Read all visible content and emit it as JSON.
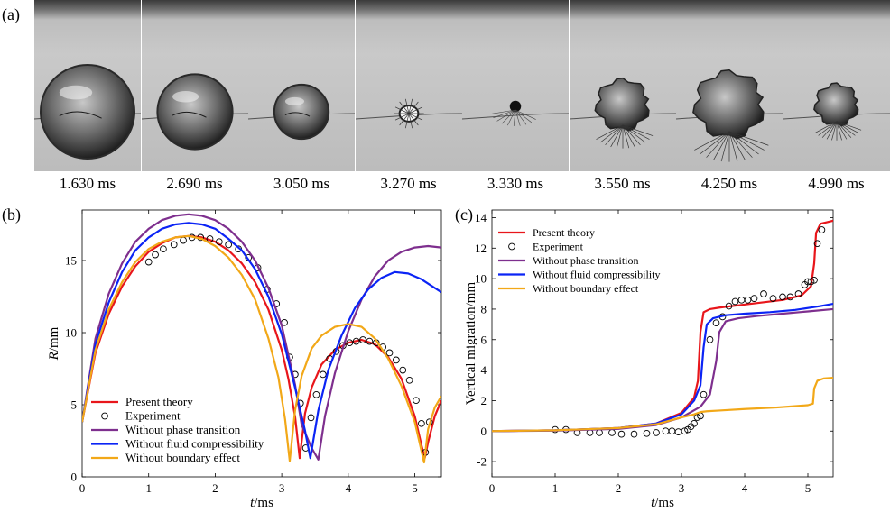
{
  "panel_labels": {
    "a": "(a)",
    "b": "(b)",
    "c": "(c)"
  },
  "frames": [
    {
      "time": "1.630 ms",
      "bubble": 1.0,
      "shape": "sphere"
    },
    {
      "time": "2.690 ms",
      "bubble": 0.8,
      "shape": "sphere"
    },
    {
      "time": "3.050 ms",
      "bubble": 0.58,
      "shape": "sphere"
    },
    {
      "time": "3.270 ms",
      "bubble": 0.2,
      "shape": "bright-core"
    },
    {
      "time": "3.330 ms",
      "bubble": 0.12,
      "shape": "dark-core"
    },
    {
      "time": "3.550 ms",
      "bubble": 0.55,
      "shape": "rough"
    },
    {
      "time": "4.250 ms",
      "bubble": 0.72,
      "shape": "rough"
    },
    {
      "time": "4.990 ms",
      "bubble": 0.45,
      "shape": "rough"
    }
  ],
  "colors": {
    "present": "#e8161b",
    "phase": "#7e2f8e",
    "compress": "#0b24f5",
    "boundary": "#f2a818",
    "experiment": "#000000"
  },
  "chart_data": [
    {
      "type": "line",
      "xlabel_var": "t",
      "xlabel_unit": "/ms",
      "ylabel_var": "R",
      "ylabel_unit": "/mm",
      "xlim": [
        0,
        5.4
      ],
      "ylim": [
        0,
        18.5
      ],
      "xticks": [
        0,
        1,
        2,
        3,
        4,
        5
      ],
      "yticks": [
        0,
        5,
        10,
        15
      ],
      "legend_position": "bottom-left",
      "legend": [
        "Present theory",
        "Experiment",
        "Without phase transition",
        "Without fluid compressibility",
        "Without boundary effect"
      ],
      "series": [
        {
          "name": "Present theory",
          "style": "line",
          "color_key": "present",
          "x": [
            0,
            0.2,
            0.4,
            0.6,
            0.8,
            1.0,
            1.2,
            1.4,
            1.6,
            1.8,
            2.0,
            2.2,
            2.4,
            2.6,
            2.8,
            3.0,
            3.1,
            3.2,
            3.27,
            3.35,
            3.45,
            3.6,
            3.8,
            4.0,
            4.2,
            4.4,
            4.6,
            4.8,
            5.0,
            5.1,
            5.15,
            5.2,
            5.3,
            5.4
          ],
          "y": [
            3.8,
            8.6,
            11.3,
            13.2,
            14.6,
            15.6,
            16.2,
            16.6,
            16.7,
            16.6,
            16.3,
            15.7,
            14.8,
            13.5,
            11.6,
            8.8,
            6.8,
            4.2,
            1.3,
            4.4,
            6.2,
            7.8,
            8.8,
            9.3,
            9.5,
            9.2,
            8.3,
            6.8,
            4.2,
            2.2,
            1.3,
            2.4,
            4.2,
            5.3
          ]
        },
        {
          "name": "Experiment",
          "style": "marker",
          "color_key": "experiment",
          "x": [
            1.0,
            1.1,
            1.22,
            1.38,
            1.52,
            1.65,
            1.78,
            1.92,
            2.06,
            2.2,
            2.35,
            2.5,
            2.64,
            2.78,
            2.92,
            3.04,
            3.12,
            3.2,
            3.28,
            3.36,
            3.44,
            3.52,
            3.62,
            3.72,
            3.82,
            3.92,
            4.02,
            4.12,
            4.22,
            4.32,
            4.42,
            4.52,
            4.62,
            4.72,
            4.82,
            4.92,
            5.02,
            5.1,
            5.16,
            5.22
          ],
          "y": [
            14.9,
            15.4,
            15.8,
            16.1,
            16.4,
            16.6,
            16.6,
            16.5,
            16.3,
            16.1,
            15.8,
            15.2,
            14.5,
            13.0,
            12.0,
            10.7,
            8.3,
            7.1,
            5.1,
            2.0,
            4.1,
            5.7,
            7.1,
            8.2,
            8.7,
            9.1,
            9.3,
            9.4,
            9.5,
            9.4,
            9.3,
            9.0,
            8.6,
            8.1,
            7.4,
            6.7,
            5.3,
            3.7,
            1.7,
            3.8
          ]
        },
        {
          "name": "Without phase transition",
          "style": "line",
          "color_key": "phase",
          "x": [
            0,
            0.2,
            0.4,
            0.6,
            0.8,
            1.0,
            1.2,
            1.4,
            1.6,
            1.8,
            2.0,
            2.2,
            2.4,
            2.6,
            2.8,
            3.0,
            3.2,
            3.3,
            3.45,
            3.55,
            3.65,
            3.8,
            4.0,
            4.2,
            4.4,
            4.6,
            4.8,
            5.0,
            5.2,
            5.4
          ],
          "y": [
            3.8,
            9.6,
            12.7,
            14.8,
            16.3,
            17.2,
            17.8,
            18.1,
            18.2,
            18.1,
            17.8,
            17.2,
            16.3,
            15.0,
            13.1,
            10.5,
            6.4,
            3.6,
            2.0,
            1.2,
            4.2,
            7.2,
            10.1,
            12.3,
            13.9,
            15.0,
            15.6,
            15.9,
            16.0,
            15.9
          ]
        },
        {
          "name": "Without fluid compressibility",
          "style": "line",
          "color_key": "compress",
          "x": [
            0,
            0.2,
            0.4,
            0.6,
            0.8,
            1.0,
            1.2,
            1.4,
            1.6,
            1.8,
            2.0,
            2.2,
            2.4,
            2.6,
            2.8,
            3.0,
            3.2,
            3.35,
            3.43,
            3.55,
            3.7,
            3.9,
            4.1,
            4.3,
            4.5,
            4.7,
            4.9,
            5.1,
            5.3,
            5.4
          ],
          "y": [
            3.8,
            9.2,
            12.1,
            14.2,
            15.7,
            16.6,
            17.2,
            17.5,
            17.6,
            17.5,
            17.2,
            16.5,
            15.7,
            14.4,
            12.5,
            9.9,
            6.2,
            3.2,
            1.3,
            4.6,
            7.4,
            9.8,
            11.7,
            13.0,
            13.8,
            14.2,
            14.1,
            13.7,
            13.1,
            12.8
          ]
        },
        {
          "name": "Without boundary effect",
          "style": "line",
          "color_key": "boundary",
          "x": [
            0,
            0.2,
            0.4,
            0.6,
            0.8,
            1.0,
            1.2,
            1.4,
            1.6,
            1.8,
            2.0,
            2.2,
            2.4,
            2.6,
            2.8,
            2.95,
            3.05,
            3.12,
            3.2,
            3.3,
            3.45,
            3.6,
            3.8,
            4.0,
            4.2,
            4.4,
            4.6,
            4.8,
            5.0,
            5.1,
            5.14,
            5.2,
            5.3,
            5.4
          ],
          "y": [
            3.8,
            8.8,
            11.6,
            13.5,
            14.9,
            15.8,
            16.3,
            16.6,
            16.7,
            16.5,
            16.0,
            15.2,
            14.0,
            12.3,
            9.6,
            6.9,
            4.0,
            1.1,
            4.6,
            7.0,
            8.9,
            9.8,
            10.4,
            10.6,
            10.4,
            9.6,
            8.2,
            6.3,
            3.8,
            1.8,
            1.0,
            3.3,
            4.8,
            5.6
          ]
        }
      ]
    },
    {
      "type": "line",
      "xlabel_var": "t",
      "xlabel_unit": "/ms",
      "ylabel": "Vertical migration/mm",
      "xlim": [
        0,
        5.4
      ],
      "ylim": [
        -3,
        14.5
      ],
      "xticks": [
        0,
        1,
        2,
        3,
        4,
        5
      ],
      "yticks": [
        -2,
        0,
        2,
        4,
        6,
        8,
        10,
        12,
        14
      ],
      "legend_position": "top-left",
      "legend": [
        "Present theory",
        "Experiment",
        "Without phase transition",
        "Without fluid compressibility",
        "Without boundary effect"
      ],
      "series": [
        {
          "name": "Present theory",
          "style": "line",
          "color_key": "present",
          "x": [
            0,
            1.0,
            2.0,
            2.6,
            3.0,
            3.2,
            3.26,
            3.3,
            3.35,
            3.45,
            3.6,
            3.8,
            4.2,
            4.6,
            4.9,
            5.05,
            5.1,
            5.13,
            5.2,
            5.3,
            5.4
          ],
          "y": [
            0,
            0.05,
            0.2,
            0.5,
            1.2,
            2.2,
            3.3,
            6.5,
            7.8,
            8.0,
            8.1,
            8.2,
            8.4,
            8.6,
            8.9,
            9.5,
            11.0,
            13.0,
            13.6,
            13.7,
            13.8
          ]
        },
        {
          "name": "Experiment",
          "style": "marker",
          "color_key": "experiment",
          "x": [
            1.0,
            1.17,
            1.35,
            1.55,
            1.7,
            1.9,
            2.05,
            2.25,
            2.45,
            2.6,
            2.75,
            2.85,
            2.95,
            3.05,
            3.1,
            3.15,
            3.2,
            3.25,
            3.3,
            3.35,
            3.45,
            3.55,
            3.65,
            3.75,
            3.85,
            3.95,
            4.05,
            4.15,
            4.3,
            4.45,
            4.6,
            4.72,
            4.85,
            4.95,
            5.0,
            5.05,
            5.1,
            5.15,
            5.22
          ],
          "y": [
            0.1,
            0.1,
            -0.1,
            -0.1,
            -0.1,
            -0.1,
            -0.2,
            -0.2,
            -0.15,
            -0.1,
            0.0,
            0.0,
            -0.05,
            0.0,
            0.1,
            0.3,
            0.5,
            0.9,
            1.0,
            2.4,
            6.0,
            7.1,
            7.5,
            8.2,
            8.5,
            8.6,
            8.6,
            8.7,
            9.0,
            8.7,
            8.8,
            8.8,
            9.0,
            9.6,
            9.8,
            9.8,
            9.9,
            12.3,
            13.2
          ]
        },
        {
          "name": "Without phase transition",
          "style": "line",
          "color_key": "phase",
          "x": [
            0,
            1.0,
            2.0,
            2.6,
            3.0,
            3.3,
            3.45,
            3.55,
            3.6,
            3.7,
            3.9,
            4.2,
            4.6,
            5.0,
            5.4
          ],
          "y": [
            0,
            0.03,
            0.15,
            0.4,
            0.9,
            1.6,
            2.4,
            4.6,
            6.5,
            7.2,
            7.4,
            7.55,
            7.7,
            7.85,
            8.0
          ]
        },
        {
          "name": "Without fluid compressibility",
          "style": "line",
          "color_key": "compress",
          "x": [
            0,
            1.0,
            2.0,
            2.6,
            3.0,
            3.2,
            3.3,
            3.35,
            3.4,
            3.5,
            3.7,
            4.0,
            4.4,
            4.8,
            5.2,
            5.4
          ],
          "y": [
            0,
            0.05,
            0.2,
            0.5,
            1.1,
            2.0,
            3.0,
            5.5,
            7.0,
            7.4,
            7.6,
            7.7,
            7.8,
            7.95,
            8.2,
            8.35
          ]
        },
        {
          "name": "Without boundary effect",
          "style": "line",
          "color_key": "boundary",
          "x": [
            0,
            1.0,
            2.0,
            2.6,
            3.0,
            3.2,
            3.3,
            3.4,
            3.6,
            4.0,
            4.5,
            5.0,
            5.08,
            5.1,
            5.15,
            5.25,
            5.4
          ],
          "y": [
            0,
            0.05,
            0.2,
            0.45,
            0.9,
            1.1,
            1.25,
            1.3,
            1.35,
            1.45,
            1.55,
            1.7,
            1.8,
            2.8,
            3.3,
            3.45,
            3.5
          ]
        }
      ]
    }
  ]
}
